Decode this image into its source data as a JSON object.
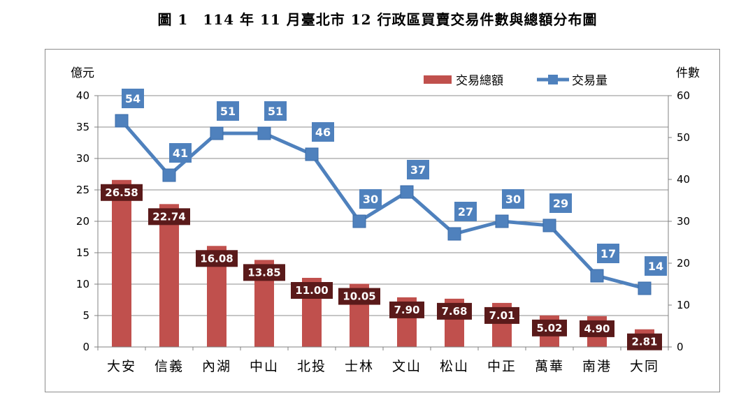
{
  "figure_title": "圖 1　114 年 11 月臺北市 12 行政區買賣交易件數與總額分布圖",
  "chart_data": {
    "type": "bar",
    "categories": [
      "大安",
      "信義",
      "內湖",
      "中山",
      "北投",
      "士林",
      "文山",
      "松山",
      "中正",
      "萬華",
      "南港",
      "大同"
    ],
    "series": [
      {
        "name": "交易總額",
        "type": "bar",
        "axis": "left",
        "color": "#c0504d",
        "values": [
          26.58,
          22.74,
          16.08,
          13.85,
          11.0,
          10.05,
          7.9,
          7.68,
          7.01,
          5.02,
          4.9,
          2.81
        ],
        "labels": [
          "26.58",
          "22.74",
          "16.08",
          "13.85",
          "11.00",
          "10.05",
          "7.90",
          "7.68",
          "7.01",
          "5.02",
          "4.90",
          "2.81"
        ]
      },
      {
        "name": "交易量",
        "type": "line",
        "axis": "right",
        "color": "#4f81bd",
        "values": [
          54,
          41,
          51,
          51,
          46,
          30,
          37,
          27,
          30,
          29,
          17,
          14
        ],
        "labels": [
          "54",
          "41",
          "51",
          "51",
          "46",
          "30",
          "37",
          "27",
          "30",
          "29",
          "17",
          "14"
        ]
      }
    ],
    "ylabel_left": "億元",
    "ylabel_right": "件數",
    "ylim_left": [
      0,
      40
    ],
    "yticks_left": [
      "0",
      "5",
      "10",
      "15",
      "20",
      "25",
      "30",
      "35",
      "40"
    ],
    "ylim_right": [
      0,
      60
    ],
    "yticks_right": [
      "0",
      "10",
      "20",
      "30",
      "40",
      "50",
      "60"
    ],
    "grid": true,
    "legend": "top-right",
    "bar_label_bg": "#5a1a1a",
    "line_label_bg": "#4f81bd"
  }
}
